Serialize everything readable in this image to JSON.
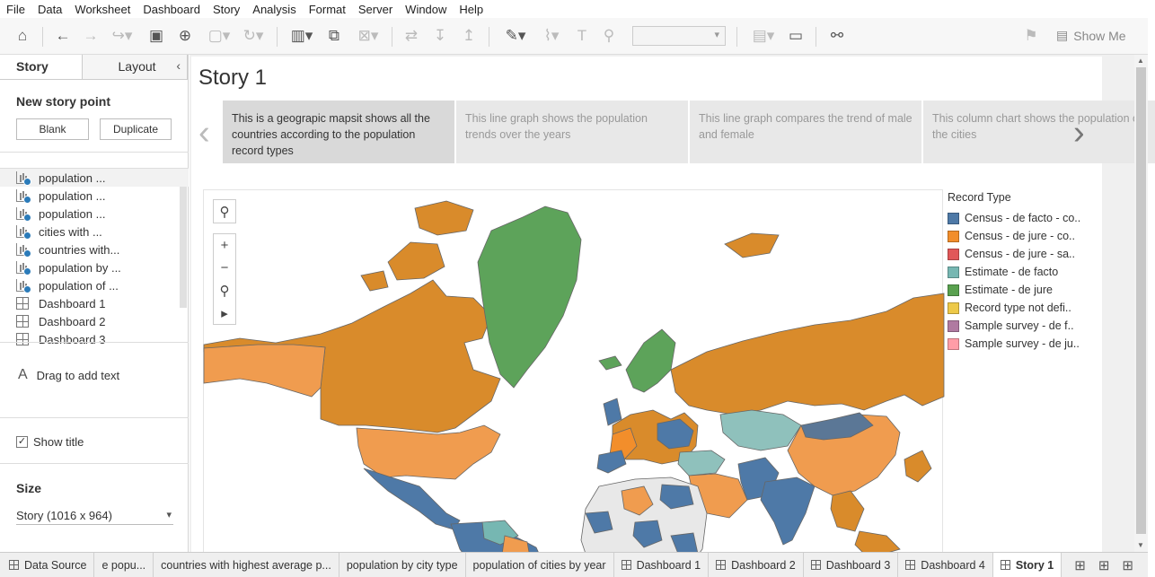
{
  "menu": [
    "File",
    "Data",
    "Worksheet",
    "Dashboard",
    "Story",
    "Analysis",
    "Format",
    "Server",
    "Window",
    "Help"
  ],
  "toolbar": {
    "show_me": "Show Me"
  },
  "left_pane": {
    "tabs": {
      "story": "Story",
      "layout": "Layout"
    },
    "new_story_point": "New story point",
    "blank": "Blank",
    "duplicate": "Duplicate",
    "sheets": [
      {
        "label": "population ...",
        "type": "worksheet"
      },
      {
        "label": "population ...",
        "type": "worksheet"
      },
      {
        "label": "population ...",
        "type": "worksheet"
      },
      {
        "label": "cities with ...",
        "type": "worksheet"
      },
      {
        "label": "countries with...",
        "type": "worksheet"
      },
      {
        "label": "population by ...",
        "type": "worksheet"
      },
      {
        "label": "population of ...",
        "type": "worksheet"
      },
      {
        "label": "Dashboard 1",
        "type": "dashboard"
      },
      {
        "label": "Dashboard 2",
        "type": "dashboard"
      },
      {
        "label": "Dashboard 3",
        "type": "dashboard"
      }
    ],
    "drag_text": "Drag to add text",
    "show_title": "Show title",
    "size_label": "Size",
    "size_value": "Story (1016 x 964)"
  },
  "story": {
    "title": "Story 1",
    "points": [
      "This is a geograpic mapsit shows all the countries according to the population record types",
      "This line graph shows the population trends over the years",
      "This line graph compares the trend of male and female",
      "This column chart shows the population of the cities"
    ]
  },
  "legend": {
    "title": "Record Type",
    "items": [
      {
        "label": "Census - de facto - co..",
        "color": "#4e79a7"
      },
      {
        "label": "Census - de jure - co..",
        "color": "#f28e2b"
      },
      {
        "label": "Census - de jure - sa..",
        "color": "#e15759"
      },
      {
        "label": "Estimate - de facto",
        "color": "#76b7b2"
      },
      {
        "label": "Estimate - de jure",
        "color": "#59a14f"
      },
      {
        "label": "Record type not defi..",
        "color": "#edc948"
      },
      {
        "label": "Sample survey - de f..",
        "color": "#b07aa1"
      },
      {
        "label": "Sample survey - de ju..",
        "color": "#ff9da7"
      }
    ]
  },
  "tabs": [
    {
      "label": "Data Source",
      "kind": "source"
    },
    {
      "label": "e popu...",
      "kind": "sheet"
    },
    {
      "label": "countries with highest average p...",
      "kind": "sheet"
    },
    {
      "label": "population by city type",
      "kind": "sheet"
    },
    {
      "label": "population of cities by year",
      "kind": "sheet"
    },
    {
      "label": "Dashboard 1",
      "kind": "dashboard"
    },
    {
      "label": "Dashboard 2",
      "kind": "dashboard"
    },
    {
      "label": "Dashboard 3",
      "kind": "dashboard"
    },
    {
      "label": "Dashboard 4",
      "kind": "dashboard"
    },
    {
      "label": "Story 1",
      "kind": "story",
      "active": true
    }
  ]
}
